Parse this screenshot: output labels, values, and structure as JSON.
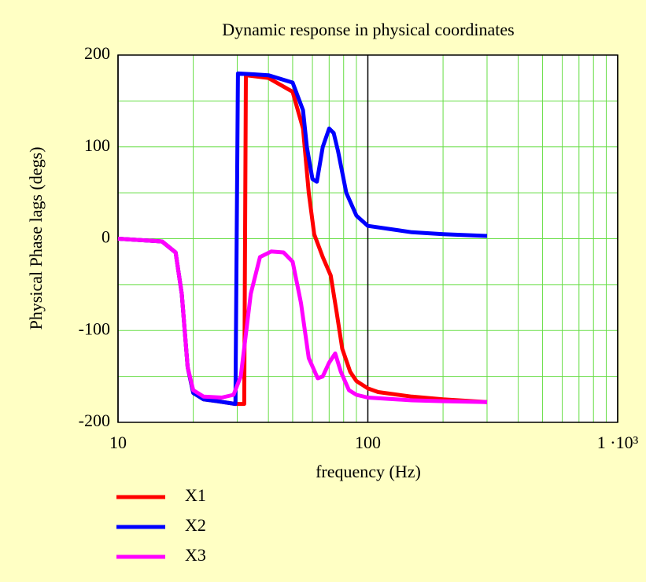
{
  "chart_data": {
    "type": "line",
    "title": "Dynamic response in physical coordinates",
    "xlabel": "frequency (Hz)",
    "ylabel": "Physical Phase lags (degs)",
    "xscale": "log",
    "xlim": [
      10,
      1000
    ],
    "xticks": [
      10,
      100,
      {
        "value": 1000,
        "label": "1 ·10³"
      }
    ],
    "xminor": [
      20,
      30,
      40,
      50,
      60,
      70,
      80,
      90,
      200,
      300,
      400,
      500,
      600,
      700,
      800,
      900
    ],
    "ylim": [
      -200,
      200
    ],
    "yticks": [
      -200,
      -100,
      0,
      100,
      200
    ],
    "yminor": [
      -150,
      -50,
      50,
      150
    ],
    "grid": true,
    "legend": "bottom-left",
    "series": [
      {
        "name": "X1",
        "color": "#ff0000",
        "x": [
          10,
          15,
          17,
          18,
          19,
          20,
          22,
          25,
          29.5,
          32,
          32.5,
          40,
          50,
          55,
          58,
          61,
          66,
          71,
          75,
          79,
          85,
          90,
          100,
          110,
          150,
          200,
          300
        ],
        "values": [
          0,
          -3,
          -15,
          -60,
          -140,
          -168,
          -175,
          -177,
          -180,
          -180,
          178,
          175,
          160,
          120,
          50,
          5,
          -20,
          -40,
          -80,
          -120,
          -145,
          -155,
          -163,
          -167,
          -172,
          -175,
          -178
        ]
      },
      {
        "name": "X2",
        "color": "#0000ff",
        "x": [
          10,
          15,
          17,
          18,
          19,
          20,
          22,
          25,
          29.5,
          30.2,
          35,
          40,
          50,
          55,
          57,
          60,
          62.5,
          66,
          70,
          73,
          76,
          82,
          90,
          100,
          150,
          200,
          300
        ],
        "values": [
          0,
          -3,
          -15,
          -60,
          -140,
          -168,
          -175,
          -177,
          -180,
          180,
          179,
          178,
          170,
          140,
          100,
          65,
          62,
          100,
          120,
          115,
          95,
          50,
          25,
          14,
          7,
          5,
          3
        ]
      },
      {
        "name": "X3",
        "color": "#ff00ff",
        "x": [
          10,
          15,
          17,
          18,
          19,
          20,
          22,
          26,
          29,
          31,
          34,
          37,
          41,
          46,
          50,
          54,
          58,
          63,
          66,
          70,
          74,
          78,
          84,
          90,
          100,
          150,
          200,
          300
        ],
        "values": [
          0,
          -3,
          -15,
          -60,
          -140,
          -165,
          -172,
          -173,
          -170,
          -150,
          -60,
          -20,
          -14,
          -15,
          -25,
          -70,
          -130,
          -152,
          -150,
          -135,
          -125,
          -145,
          -165,
          -170,
          -173,
          -176,
          -177,
          -178
        ]
      }
    ]
  }
}
